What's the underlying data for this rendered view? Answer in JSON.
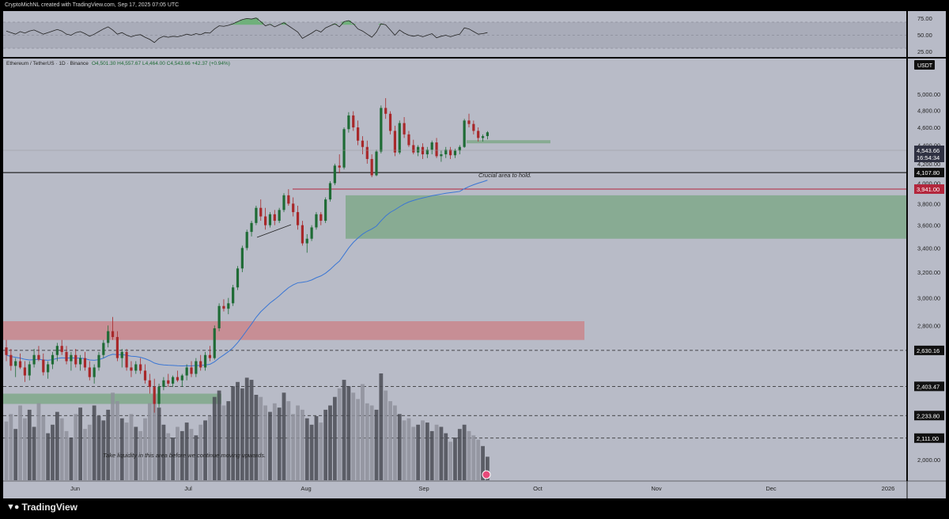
{
  "header": {
    "attribution": "CryptoMichNL created with TradingView.com, Sep 17, 2025 07:05 UTC"
  },
  "footer": {
    "brand": "TradingView",
    "logo_icon": "tradingview-logo-icon"
  },
  "legend": {
    "symbol": "Ethereum / TetherUS · 1D · Binance",
    "ohlc": "O4,501.30  H4,557.67  L4,464.00  C4,543.66  +42.37 (+0.94%)"
  },
  "currency": "USDT",
  "price_axis": {
    "ticks": [
      "5,000.00",
      "4,800.00",
      "4,600.00",
      "4,400.00",
      "4,200.00",
      "4,000.00",
      "3,800.00",
      "3,600.00",
      "3,400.00",
      "3,200.00",
      "3,000.00",
      "2,800.00",
      "2,000.00"
    ],
    "last_price": "4,543.66",
    "countdown": "16:54:34",
    "level_labels": [
      "4,107.80",
      "3,941.00",
      "2,630.16",
      "2,403.47",
      "2,233.80",
      "2,111.00"
    ]
  },
  "rsi_axis": {
    "ticks": [
      "75.00",
      "50.00",
      "25.00"
    ]
  },
  "time_axis": {
    "labels": [
      "Jun",
      "Jul",
      "Aug",
      "Sep",
      "Oct",
      "Nov",
      "Dec",
      "2026"
    ]
  },
  "annotations": {
    "crucial": "Crucial area to hold.",
    "liquidity": "Take liquidity in this area before we continue moving upwards."
  },
  "colors": {
    "background": "#b8bbc7",
    "bull": "#1e6b35",
    "bear": "#a8282a",
    "ema": "#3a76d4",
    "green_zone": "#7fa88a",
    "red_zone": "#c9868c",
    "level_red": "#b3263c"
  },
  "chart_data": {
    "type": "candlestick",
    "symbol": "Ethereum / TetherUS",
    "timeframe": "1D",
    "exchange": "Binance",
    "last": {
      "open": 4501.3,
      "high": 4557.67,
      "low": 4464.0,
      "close": 4543.66,
      "change": 42.37,
      "change_pct": 0.94
    },
    "y_range": [
      1850,
      5200
    ],
    "horizontal_levels": [
      {
        "price": 4107.8,
        "style": "solid",
        "color": "#000000"
      },
      {
        "price": 3941.0,
        "style": "solid",
        "color": "#b3263c"
      },
      {
        "price": 2630.16,
        "style": "dashed",
        "color": "#222222"
      },
      {
        "price": 2403.47,
        "style": "dashed",
        "color": "#222222"
      },
      {
        "price": 2233.8,
        "style": "dashed",
        "color": "#222222"
      },
      {
        "price": 2111.0,
        "style": "dashed",
        "color": "#222222"
      }
    ],
    "zones": [
      {
        "name": "demand-zone-large",
        "from_price": 3480,
        "to_price": 3880,
        "color": "#7fa88a"
      },
      {
        "name": "crucial-zone",
        "from_price": 4420,
        "to_price": 4455,
        "color": "#7fa88a"
      },
      {
        "name": "resistance-zone",
        "from_price": 2700,
        "to_price": 2830,
        "color": "#c9868c"
      },
      {
        "name": "liquidity-zone",
        "from_price": 2300,
        "to_price": 2360,
        "color": "#7fa88a"
      }
    ],
    "candles": [
      [
        2650,
        2700,
        2560,
        2600
      ],
      [
        2600,
        2640,
        2500,
        2530
      ],
      [
        2530,
        2580,
        2460,
        2560
      ],
      [
        2560,
        2610,
        2510,
        2520
      ],
      [
        2520,
        2560,
        2430,
        2470
      ],
      [
        2470,
        2560,
        2440,
        2540
      ],
      [
        2540,
        2640,
        2520,
        2600
      ],
      [
        2600,
        2660,
        2560,
        2570
      ],
      [
        2570,
        2610,
        2470,
        2490
      ],
      [
        2490,
        2560,
        2450,
        2540
      ],
      [
        2540,
        2620,
        2510,
        2600
      ],
      [
        2600,
        2680,
        2560,
        2660
      ],
      [
        2660,
        2700,
        2600,
        2620
      ],
      [
        2620,
        2660,
        2540,
        2560
      ],
      [
        2560,
        2620,
        2500,
        2600
      ],
      [
        2600,
        2640,
        2520,
        2540
      ],
      [
        2540,
        2600,
        2500,
        2580
      ],
      [
        2580,
        2620,
        2500,
        2520
      ],
      [
        2520,
        2560,
        2440,
        2460
      ],
      [
        2460,
        2540,
        2420,
        2520
      ],
      [
        2520,
        2620,
        2500,
        2600
      ],
      [
        2600,
        2700,
        2580,
        2680
      ],
      [
        2680,
        2800,
        2650,
        2760
      ],
      [
        2760,
        2860,
        2700,
        2720
      ],
      [
        2720,
        2760,
        2560,
        2580
      ],
      [
        2580,
        2640,
        2520,
        2620
      ],
      [
        2620,
        2640,
        2500,
        2520
      ],
      [
        2520,
        2560,
        2460,
        2500
      ],
      [
        2500,
        2560,
        2480,
        2540
      ],
      [
        2540,
        2580,
        2480,
        2500
      ],
      [
        2500,
        2540,
        2420,
        2440
      ],
      [
        2440,
        2480,
        2360,
        2400
      ],
      [
        2400,
        2450,
        2250,
        2300
      ],
      [
        2300,
        2420,
        2280,
        2400
      ],
      [
        2400,
        2460,
        2380,
        2440
      ],
      [
        2440,
        2480,
        2400,
        2420
      ],
      [
        2420,
        2470,
        2400,
        2460
      ],
      [
        2460,
        2500,
        2430,
        2440
      ],
      [
        2440,
        2480,
        2400,
        2470
      ],
      [
        2470,
        2540,
        2440,
        2520
      ],
      [
        2520,
        2560,
        2460,
        2480
      ],
      [
        2480,
        2580,
        2460,
        2560
      ],
      [
        2560,
        2600,
        2500,
        2520
      ],
      [
        2520,
        2620,
        2500,
        2600
      ],
      [
        2600,
        2660,
        2560,
        2580
      ],
      [
        2580,
        2800,
        2570,
        2780
      ],
      [
        2780,
        2960,
        2760,
        2940
      ],
      [
        2940,
        2990,
        2900,
        2920
      ],
      [
        2920,
        3000,
        2880,
        2960
      ],
      [
        2960,
        3100,
        2940,
        3080
      ],
      [
        3080,
        3250,
        3060,
        3230
      ],
      [
        3230,
        3420,
        3200,
        3400
      ],
      [
        3400,
        3560,
        3380,
        3540
      ],
      [
        3540,
        3640,
        3500,
        3620
      ],
      [
        3620,
        3780,
        3600,
        3760
      ],
      [
        3760,
        3840,
        3640,
        3680
      ],
      [
        3680,
        3760,
        3560,
        3600
      ],
      [
        3600,
        3720,
        3580,
        3700
      ],
      [
        3700,
        3740,
        3600,
        3640
      ],
      [
        3640,
        3760,
        3620,
        3740
      ],
      [
        3740,
        3900,
        3720,
        3880
      ],
      [
        3880,
        3940,
        3780,
        3800
      ],
      [
        3800,
        3860,
        3680,
        3720
      ],
      [
        3720,
        3780,
        3560,
        3600
      ],
      [
        3600,
        3640,
        3420,
        3440
      ],
      [
        3440,
        3520,
        3360,
        3480
      ],
      [
        3480,
        3600,
        3460,
        3580
      ],
      [
        3580,
        3720,
        3560,
        3700
      ],
      [
        3700,
        3720,
        3600,
        3640
      ],
      [
        3640,
        3860,
        3620,
        3840
      ],
      [
        3840,
        4020,
        3820,
        4000
      ],
      [
        4000,
        4200,
        3980,
        4180
      ],
      [
        4180,
        4300,
        4100,
        4160
      ],
      [
        4160,
        4600,
        4140,
        4580
      ],
      [
        4580,
        4780,
        4540,
        4740
      ],
      [
        4740,
        4790,
        4560,
        4600
      ],
      [
        4600,
        4680,
        4400,
        4450
      ],
      [
        4450,
        4500,
        4300,
        4380
      ],
      [
        4380,
        4450,
        4200,
        4250
      ],
      [
        4250,
        4300,
        4060,
        4080
      ],
      [
        4080,
        4350,
        4070,
        4330
      ],
      [
        4330,
        4860,
        4310,
        4830
      ],
      [
        4830,
        4950,
        4700,
        4760
      ],
      [
        4760,
        4790,
        4520,
        4560
      ],
      [
        4560,
        4620,
        4280,
        4320
      ],
      [
        4320,
        4680,
        4300,
        4650
      ],
      [
        4650,
        4720,
        4480,
        4520
      ],
      [
        4520,
        4560,
        4380,
        4400
      ],
      [
        4400,
        4460,
        4300,
        4320
      ],
      [
        4320,
        4400,
        4280,
        4380
      ],
      [
        4380,
        4420,
        4250,
        4300
      ],
      [
        4300,
        4380,
        4260,
        4350
      ],
      [
        4350,
        4450,
        4300,
        4430
      ],
      [
        4430,
        4480,
        4260,
        4280
      ],
      [
        4280,
        4340,
        4220,
        4300
      ],
      [
        4300,
        4380,
        4260,
        4350
      ],
      [
        4350,
        4380,
        4250,
        4290
      ],
      [
        4290,
        4360,
        4260,
        4340
      ],
      [
        4340,
        4400,
        4300,
        4380
      ],
      [
        4380,
        4700,
        4370,
        4680
      ],
      [
        4680,
        4760,
        4600,
        4640
      ],
      [
        4640,
        4680,
        4520,
        4560
      ],
      [
        4560,
        4600,
        4440,
        4480
      ],
      [
        4480,
        4520,
        4440,
        4500
      ],
      [
        4501.3,
        4557.67,
        4464,
        4543.66
      ]
    ],
    "volumes": [
      0.55,
      0.62,
      0.48,
      0.7,
      0.58,
      0.66,
      0.5,
      0.72,
      0.6,
      0.44,
      0.52,
      0.64,
      0.58,
      0.46,
      0.4,
      0.62,
      0.68,
      0.48,
      0.52,
      0.7,
      0.6,
      0.56,
      0.66,
      0.82,
      0.74,
      0.58,
      0.54,
      0.62,
      0.5,
      0.46,
      0.58,
      0.72,
      0.8,
      0.68,
      0.52,
      0.44,
      0.4,
      0.5,
      0.46,
      0.54,
      0.48,
      0.42,
      0.52,
      0.56,
      0.6,
      0.78,
      0.84,
      0.7,
      0.74,
      0.88,
      0.92,
      0.86,
      0.96,
      0.94,
      0.8,
      0.78,
      0.7,
      0.64,
      0.72,
      0.68,
      0.82,
      0.74,
      0.62,
      0.7,
      0.66,
      0.58,
      0.52,
      0.6,
      0.54,
      0.66,
      0.7,
      0.78,
      0.86,
      0.94,
      0.88,
      0.82,
      0.76,
      0.9,
      0.72,
      0.7,
      0.66,
      1.0,
      0.84,
      0.74,
      0.7,
      0.62,
      0.56,
      0.58,
      0.5,
      0.52,
      0.56,
      0.54,
      0.46,
      0.52,
      0.5,
      0.44,
      0.36,
      0.4,
      0.48,
      0.52,
      0.46,
      0.42,
      0.38,
      0.32,
      0.22
    ],
    "ema": [
      2600,
      2590,
      2585,
      2580,
      2572,
      2568,
      2570,
      2572,
      2568,
      2566,
      2570,
      2578,
      2582,
      2580,
      2582,
      2580,
      2580,
      2576,
      2568,
      2566,
      2570,
      2580,
      2595,
      2605,
      2602,
      2603,
      2598,
      2592,
      2590,
      2585,
      2576,
      2564,
      2548,
      2540,
      2536,
      2534,
      2533,
      2531,
      2530,
      2531,
      2530,
      2533,
      2532,
      2536,
      2540,
      2556,
      2580,
      2600,
      2622,
      2648,
      2682,
      2722,
      2766,
      2810,
      2858,
      2898,
      2930,
      2962,
      2988,
      3016,
      3048,
      3078,
      3100,
      3116,
      3120,
      3126,
      3138,
      3156,
      3170,
      3192,
      3222,
      3258,
      3290,
      3344,
      3400,
      3448,
      3486,
      3520,
      3546,
      3566,
      3592,
      3640,
      3684,
      3718,
      3742,
      3770,
      3796,
      3816,
      3830,
      3843,
      3854,
      3864,
      3876,
      3884,
      3892,
      3900,
      3906,
      3912,
      3918,
      3944,
      3966,
      3984,
      4000,
      4014,
      4030
    ],
    "rsi": [
      58,
      55,
      52,
      57,
      54,
      58,
      60,
      56,
      52,
      55,
      58,
      61,
      58,
      52,
      50,
      55,
      57,
      53,
      48,
      52,
      57,
      62,
      66,
      60,
      52,
      55,
      50,
      47,
      50,
      51,
      46,
      42,
      36,
      44,
      48,
      46,
      48,
      47,
      49,
      52,
      50,
      53,
      51,
      55,
      54,
      62,
      68,
      67,
      69,
      72,
      76,
      80,
      82,
      81,
      83,
      76,
      68,
      71,
      66,
      70,
      74,
      68,
      62,
      56,
      44,
      49,
      54,
      60,
      56,
      64,
      68,
      72,
      66,
      76,
      78,
      72,
      62,
      58,
      52,
      46,
      56,
      72,
      70,
      60,
      50,
      60,
      54,
      50,
      48,
      50,
      47,
      50,
      53,
      45,
      48,
      50,
      47,
      50,
      52,
      64,
      62,
      57,
      52,
      53,
      55
    ],
    "x_labels": [
      "Jun",
      "Jul",
      "Aug",
      "Sep",
      "Oct",
      "Nov",
      "Dec",
      "2026"
    ]
  }
}
